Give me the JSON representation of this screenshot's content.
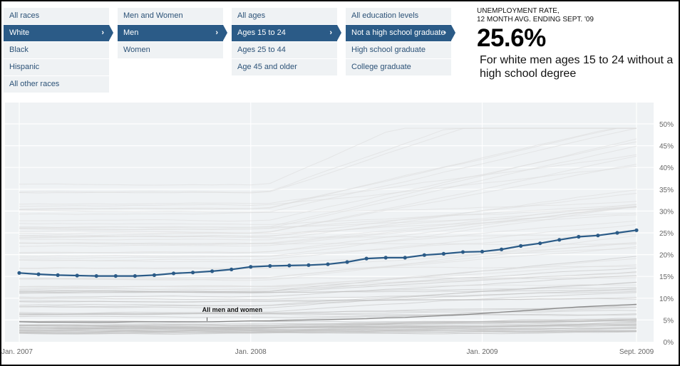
{
  "filters": {
    "race": {
      "items": [
        "All races",
        "White",
        "Black",
        "Hispanic",
        "All other races"
      ],
      "selected": 1
    },
    "sex": {
      "items": [
        "Men and Women",
        "Men",
        "Women"
      ],
      "selected": 1
    },
    "age": {
      "items": [
        "All ages",
        "Ages 15 to 24",
        "Ages 25 to 44",
        "Age 45 and older"
      ],
      "selected": 1
    },
    "education": {
      "items": [
        "All education levels",
        "Not a high school graduate",
        "High school graduate",
        "College graduate"
      ],
      "selected": 1
    },
    "chevron": "›"
  },
  "summary": {
    "label_line1": "UNEMPLOYMENT RATE,",
    "label_line2": "12 MONTH AVG. ENDING SEPT. '09",
    "value": "25.6%",
    "description": "For white men ages 15 to 24 without a high school degree"
  },
  "colors": {
    "selected_bg": "#2b5b87",
    "item_bg": "#eff2f4",
    "item_text": "#2c5277",
    "series": "#2b5b87",
    "plot_bg": "#eff2f4",
    "background_lines": "#c8c8c8",
    "reference_line": "#888888"
  },
  "chart_data": {
    "type": "line",
    "title": "Unemployment rate, 12 month avg. ending Sept. '09",
    "xlabel": "",
    "ylabel": "",
    "ylim": [
      0,
      50
    ],
    "yticks": [
      0,
      5,
      10,
      15,
      20,
      25,
      30,
      35,
      40,
      45,
      50
    ],
    "ytick_labels": [
      "0%",
      "5%",
      "10%",
      "15%",
      "20%",
      "25%",
      "30%",
      "35%",
      "40%",
      "45%",
      "50%"
    ],
    "xticks": [
      {
        "month_index": 0,
        "label": "Jan. 2007"
      },
      {
        "month_index": 12,
        "label": "Jan. 2008"
      },
      {
        "month_index": 24,
        "label": "Jan. 2009"
      },
      {
        "month_index": 32,
        "label": "Sept. 2009"
      }
    ],
    "grid": true,
    "x": [
      "Jan 2007",
      "Feb 2007",
      "Mar 2007",
      "Apr 2007",
      "May 2007",
      "Jun 2007",
      "Jul 2007",
      "Aug 2007",
      "Sep 2007",
      "Oct 2007",
      "Nov 2007",
      "Dec 2007",
      "Jan 2008",
      "Feb 2008",
      "Mar 2008",
      "Apr 2008",
      "May 2008",
      "Jun 2008",
      "Jul 2008",
      "Aug 2008",
      "Sep 2008",
      "Oct 2008",
      "Nov 2008",
      "Dec 2008",
      "Jan 2009",
      "Feb 2009",
      "Mar 2009",
      "Apr 2009",
      "May 2009",
      "Jun 2009",
      "Jul 2009",
      "Aug 2009",
      "Sep 2009"
    ],
    "series": [
      {
        "name": "White men ages 15 to 24, not a high school graduate",
        "role": "highlighted",
        "values": [
          15.8,
          15.5,
          15.3,
          15.2,
          15.1,
          15.1,
          15.1,
          15.3,
          15.7,
          15.9,
          16.2,
          16.6,
          17.2,
          17.4,
          17.5,
          17.6,
          17.8,
          18.3,
          19.1,
          19.3,
          19.3,
          19.9,
          20.2,
          20.6,
          20.7,
          21.2,
          22.0,
          22.6,
          23.4,
          24.1,
          24.4,
          25.0,
          25.6
        ]
      },
      {
        "name": "All men and women",
        "role": "reference",
        "annotation": "All men and women",
        "annotation_month_index": 10,
        "values": [
          4.6,
          4.5,
          4.5,
          4.5,
          4.5,
          4.5,
          4.6,
          4.6,
          4.6,
          4.6,
          4.6,
          4.7,
          4.8,
          4.8,
          4.9,
          5.0,
          5.1,
          5.2,
          5.3,
          5.5,
          5.6,
          5.8,
          6.0,
          6.2,
          6.5,
          6.8,
          7.1,
          7.4,
          7.7,
          8.0,
          8.2,
          8.4,
          8.6
        ]
      }
    ],
    "background_series_note": "Faint gray lines for all other demographic combinations"
  }
}
